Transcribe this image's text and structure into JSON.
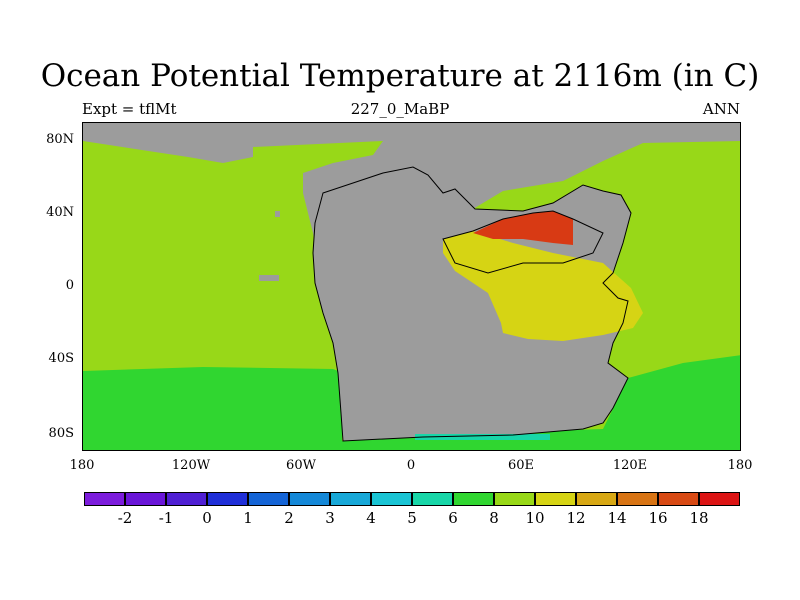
{
  "title": "Ocean Potential Temperature at 2116m (in C)",
  "subtitle_left": "Expt = tflMt",
  "subtitle_center": "227_0_MaBP",
  "subtitle_right": "ANN",
  "lat_labels": [
    "80N",
    "40N",
    "0",
    "40S",
    "80S"
  ],
  "lon_labels": [
    "180",
    "120W",
    "60W",
    "0",
    "60E",
    "120E",
    "180"
  ],
  "colorbar": {
    "labels": [
      "-2",
      "-1",
      "0",
      "1",
      "2",
      "3",
      "4",
      "5",
      "6",
      "8",
      "10",
      "12",
      "14",
      "16",
      "18"
    ],
    "colors": [
      "#7c1cdc",
      "#6a16d8",
      "#4f1fd3",
      "#1f2fd8",
      "#1464d6",
      "#1488d8",
      "#18a8d8",
      "#1ac4d4",
      "#18d6a8",
      "#30d630",
      "#98d818",
      "#d6d414",
      "#d8a814",
      "#d87414",
      "#d84a14",
      "#dc1414"
    ]
  },
  "map_colors": {
    "land": "#9c9c9c",
    "ocean_10": "#98d818",
    "ocean_8": "#30d630",
    "ocean_12": "#d6d414",
    "ocean_16": "#d83a14",
    "ocean_6": "#18d6a8"
  }
}
